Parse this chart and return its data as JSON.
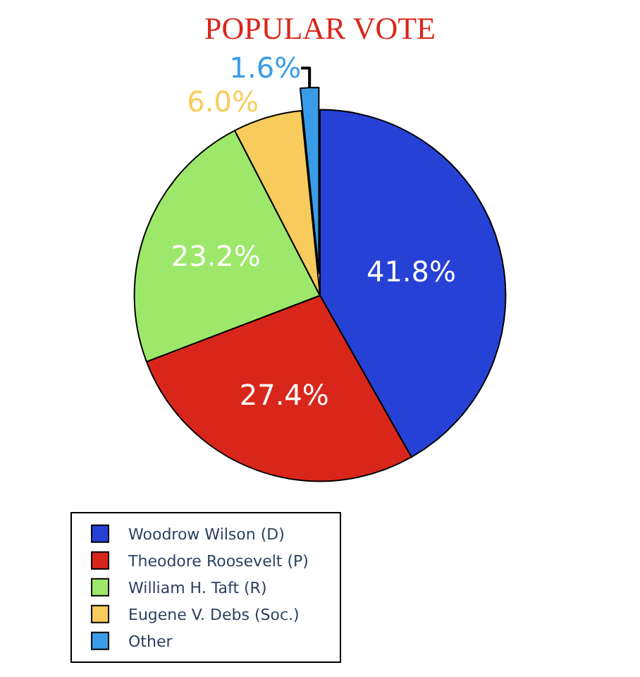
{
  "chart_data": {
    "type": "pie",
    "title": "POPULAR VOTE",
    "categories": [
      "Woodrow Wilson (D)",
      "Theodore Roosevelt (P)",
      "William H. Taft (R)",
      "Eugene V. Debs (Soc.)",
      "Other"
    ],
    "values": [
      41.8,
      27.4,
      23.2,
      6.0,
      1.6
    ],
    "colors": [
      "#2541d6",
      "#d9261a",
      "#9de86a",
      "#f8cc5c",
      "#3a9ce8"
    ],
    "value_labels": [
      "41.8%",
      "27.4%",
      "23.2%",
      "6.0%",
      "1.6%"
    ],
    "legend": "bottom left"
  }
}
